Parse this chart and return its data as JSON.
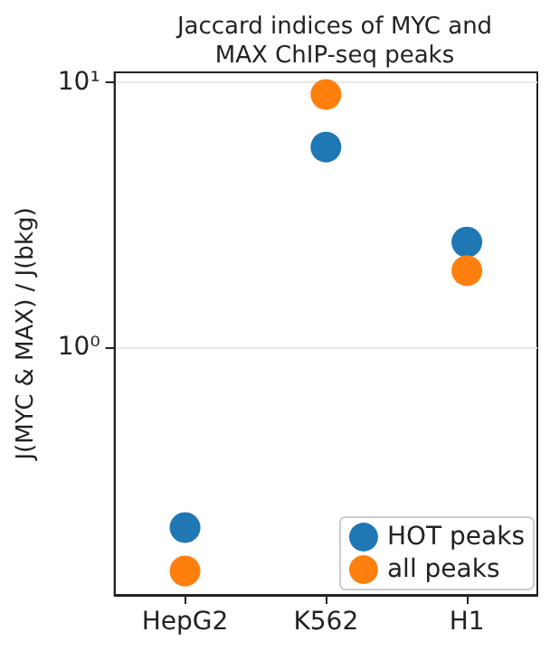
{
  "chart_data": {
    "type": "scatter",
    "title": "Jaccard indices of MYC and\nMAX ChIP-seq peaks",
    "ylabel": "J(MYC & MAX) / J(bkg)",
    "categories": [
      "HepG2",
      "K562",
      "H1"
    ],
    "series": [
      {
        "name": "HOT peaks",
        "color": "#1f77b4",
        "values": [
          0.21,
          5.7,
          2.5
        ]
      },
      {
        "name": "all peaks",
        "color": "#ff7f0e",
        "values": [
          0.144,
          9.0,
          1.95
        ]
      }
    ],
    "log": "y",
    "ylim": [
      0.117,
      10.9
    ],
    "yticks": [
      {
        "value": 1,
        "label": "10⁰"
      },
      {
        "value": 10,
        "label": "10¹"
      }
    ],
    "grid": "y",
    "legend": "bottom right",
    "marker": "circle"
  }
}
